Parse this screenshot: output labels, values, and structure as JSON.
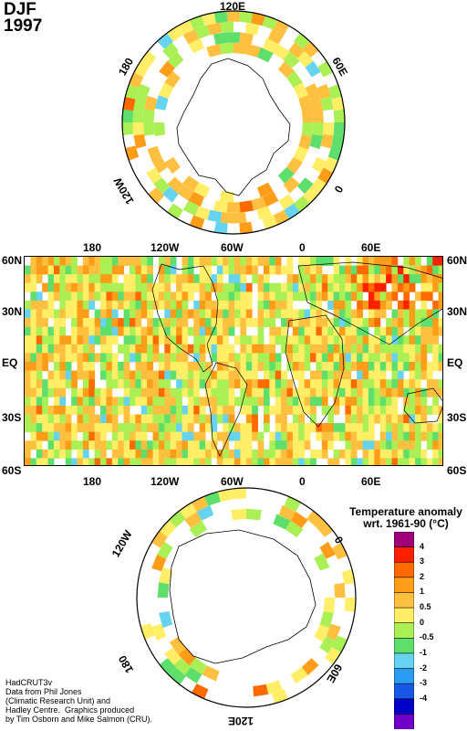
{
  "header": {
    "season": "DJF",
    "year": "1997"
  },
  "north_polar": {
    "labels": {
      "top": "120E",
      "left": "180",
      "right": "60E",
      "bottom_left": "120W",
      "bottom_right": "0"
    }
  },
  "map": {
    "top_labels": [
      "180",
      "120W",
      "60W",
      "0",
      "60E"
    ],
    "bottom_labels": [
      "180",
      "120W",
      "60W",
      "0",
      "60E"
    ],
    "left_labels": [
      "60N",
      "30N",
      "EQ",
      "30S",
      "60S"
    ],
    "right_labels": [
      "60N",
      "30N",
      "EQ",
      "30S",
      "60S"
    ]
  },
  "south_polar": {
    "labels": {
      "top_left": "120W",
      "right": "0",
      "left": "180",
      "bottom_right": "60E",
      "bottom": "120E"
    }
  },
  "legend": {
    "title_line1": "Temperature anomaly",
    "title_line2": "wrt. 1961-90  (°C)",
    "ticks": [
      "4",
      "3",
      "2",
      "1",
      "0.5",
      "0",
      "-0.5",
      "-1",
      "-2",
      "-3",
      "-4"
    ],
    "colors": [
      "#a0007a",
      "#ff2000",
      "#ff6a00",
      "#ff9c18",
      "#ffc040",
      "#ffee66",
      "#aaf055",
      "#5ede6a",
      "#66d4f0",
      "#2a9cf4",
      "#1858e6",
      "#0000c8",
      "#7000c8"
    ]
  },
  "credit": {
    "line1": "HadCRUT3v",
    "line2": "Data from Phil Jones",
    "line3": "(Climatic Research Unit) and",
    "line4": "Hadley Centre.  Graphics produced",
    "line5": "by Tim Osborn and Mike Salmon (CRU)."
  }
}
